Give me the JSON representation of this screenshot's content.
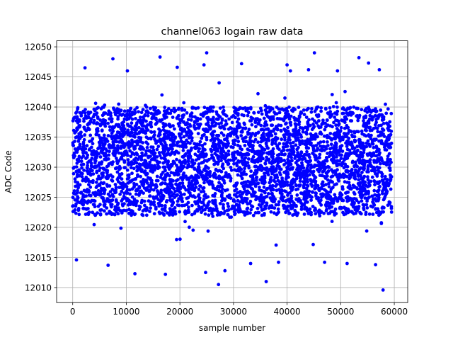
{
  "chart_data": {
    "type": "scatter",
    "title": "channel063 logain raw data",
    "xlabel": "sample number",
    "ylabel": "ADC Code",
    "xlim": [
      -3000,
      62500
    ],
    "ylim": [
      12007.5,
      12051
    ],
    "xticks": [
      0,
      10000,
      20000,
      30000,
      40000,
      50000,
      60000
    ],
    "yticks": [
      12010,
      12015,
      12020,
      12025,
      12030,
      12035,
      12040,
      12045,
      12050
    ],
    "grid": true,
    "marker_color": "#0000ff",
    "series": [
      {
        "n_samples": 60000,
        "x_range": [
          0,
          59500
        ],
        "core_band": [
          12022,
          12040
        ],
        "outliers": [
          [
            7500,
            12048
          ],
          [
            16300,
            12048.3
          ],
          [
            25000,
            12049
          ],
          [
            45100,
            12049
          ],
          [
            53400,
            12048.2
          ],
          [
            2300,
            12046.5
          ],
          [
            10200,
            12046
          ],
          [
            19500,
            12046.6
          ],
          [
            24500,
            12047
          ],
          [
            31500,
            12047.2
          ],
          [
            40000,
            12047
          ],
          [
            44000,
            12046.2
          ],
          [
            49400,
            12046
          ],
          [
            55200,
            12047.3
          ],
          [
            57200,
            12046.2
          ],
          [
            27200,
            12010.5
          ],
          [
            36100,
            12011
          ],
          [
            57900,
            12009.6
          ],
          [
            11600,
            12012.3
          ],
          [
            17300,
            12012.2
          ],
          [
            24800,
            12012.5
          ],
          [
            33200,
            12014
          ],
          [
            47000,
            12014.2
          ],
          [
            51200,
            12014
          ],
          [
            56500,
            12013.8
          ],
          [
            6600,
            12013.7
          ],
          [
            700,
            12014.6
          ],
          [
            38400,
            12014.2
          ],
          [
            28400,
            12012.8
          ]
        ]
      }
    ]
  }
}
